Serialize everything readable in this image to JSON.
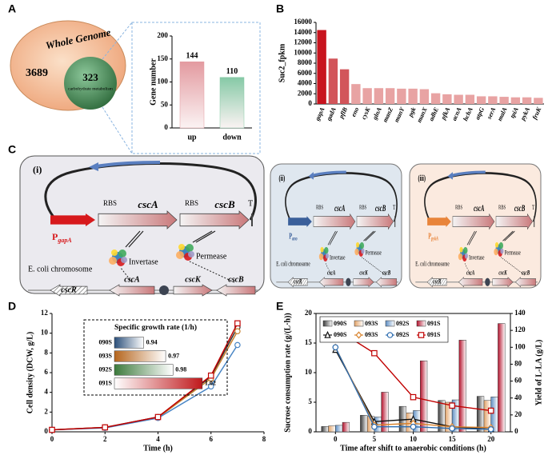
{
  "panel_labels": [
    "A",
    "B",
    "C",
    "D",
    "E"
  ],
  "venn": {
    "outer_label": "Whole Genome",
    "outer_value": 3689,
    "inner_value": 323,
    "inner_label": "carbohydrate metabolism"
  },
  "constructs": [
    {
      "id": "(i)",
      "rbs1": "RBS",
      "gene1": "cscA",
      "rbs2": "RBS",
      "gene2": "cscB",
      "terminator": "T",
      "promoter": "P",
      "promoter_sub": "gapA",
      "promoter_color": "#d7191c",
      "protein1": "Invertase",
      "protein2": "Permease",
      "chromosome": "E. coli chromosome",
      "chrom_genes": [
        "cscR",
        "cscA",
        "cscK",
        "cscB"
      ]
    },
    {
      "id": "(ii)",
      "rbs1": "RBS",
      "gene1": "cscA",
      "rbs2": "RBS",
      "gene2": "cscB",
      "terminator": "T",
      "promoter": "P",
      "promoter_sub": "ano",
      "promoter_color": "#3a5f9a",
      "protein1": "Invertase",
      "protein2": "Permease",
      "chromosome": "E. coli chromosome",
      "chrom_genes": [
        "cscR",
        "cscA",
        "cscK",
        "cscB"
      ]
    },
    {
      "id": "(iii)",
      "rbs1": "RBS",
      "gene1": "cscA",
      "rbs2": "RBS",
      "gene2": "cscB",
      "terminator": "T",
      "promoter": "P",
      "promoter_sub": "pykA",
      "promoter_color": "#e8843a",
      "protein1": "Invertase",
      "protein2": "Permease",
      "chromosome": "E. coli chromosome",
      "chrom_genes": [
        "cscR",
        "cscA",
        "cscK",
        "cscB"
      ]
    }
  ],
  "chart_data": [
    {
      "type": "bar",
      "categories": [
        "up",
        "down"
      ],
      "values": [
        144,
        110
      ],
      "colors": [
        "#e39aa0",
        "#86c9a6"
      ],
      "ylabel": "Gene number",
      "ylim": [
        0,
        200
      ],
      "yticks": [
        0,
        50,
        100,
        150,
        200
      ]
    },
    {
      "type": "bar",
      "ylabel": "Suc2_fpkm",
      "categories": [
        "gapA",
        "gadA",
        "pflB",
        "eno",
        "cysK",
        "glnA",
        "manZ",
        "manY",
        "pgk",
        "manX",
        "adhE",
        "pfkA",
        "acnA",
        "hchA",
        "atpG",
        "serA",
        "malA",
        "tpiA",
        "pykA",
        "fruK"
      ],
      "values": [
        14500,
        8900,
        6800,
        3900,
        3100,
        3100,
        3100,
        3000,
        3000,
        2900,
        2100,
        1900,
        1800,
        1800,
        1500,
        1500,
        1400,
        1300,
        1300,
        1200
      ],
      "colors": [
        "#c8141e",
        "#d2555a",
        "#d2555a",
        "#e8a3a3",
        "#e8a3a3",
        "#e8a3a3",
        "#e8a3a3",
        "#e8a3a3",
        "#e8a3a3",
        "#e8a3a3",
        "#e8a3a3",
        "#e8a3a3",
        "#e8a3a3",
        "#e8a3a3",
        "#e8a3a3",
        "#e8a3a3",
        "#e8a3a3",
        "#e8a3a3",
        "#e8a3a3",
        "#e8a3a3"
      ],
      "ylim": [
        0,
        16000
      ],
      "yticks": [
        0,
        2000,
        4000,
        6000,
        8000,
        10000,
        12000,
        14000,
        16000
      ]
    },
    {
      "type": "line",
      "xlabel": "Time (h)",
      "ylabel": "Cell density (DCW, g/L)",
      "x": [
        0,
        2,
        4,
        6,
        7
      ],
      "xlim": [
        0,
        8
      ],
      "xticks": [
        0,
        2,
        4,
        6,
        8
      ],
      "ylim": [
        0,
        12
      ],
      "yticks": [
        0,
        2,
        4,
        6,
        8,
        10,
        12
      ],
      "series": [
        {
          "name": "090S",
          "color": "#333333",
          "marker": "circle",
          "values": [
            0.2,
            0.45,
            1.5,
            5.6,
            10.6
          ]
        },
        {
          "name": "093S",
          "color": "#c8812f",
          "marker": "circle",
          "values": [
            0.2,
            0.45,
            1.45,
            5.4,
            10.2
          ]
        },
        {
          "name": "092S",
          "color": "#4a86c5",
          "marker": "circle",
          "values": [
            0.2,
            0.4,
            1.4,
            4.6,
            8.8
          ]
        },
        {
          "name": "091S",
          "color": "#c00000",
          "marker": "square",
          "values": [
            0.2,
            0.45,
            1.5,
            5.7,
            11.0
          ]
        }
      ]
    },
    {
      "type": "hbar",
      "title": "Specific growth rate (1/h)",
      "categories": [
        "090S",
        "093S",
        "092S",
        "091S"
      ],
      "values": [
        0.94,
        0.97,
        0.98,
        1.02
      ],
      "colors": [
        "#2b4f7a",
        "#b5651d",
        "#3c7a3c",
        "#c0191c"
      ],
      "xlim": [
        0.9,
        1.03
      ]
    },
    {
      "type": "combo",
      "xlabel": "Time after shift to anaerobic conditions (h)",
      "ylabel": "Sucrose consumption rate (g/(L·h))",
      "y2label": "Yield of L-LA (g/L)",
      "x": [
        0,
        5,
        10,
        15,
        20
      ],
      "xlim": [
        -2.5,
        22.5
      ],
      "xticks": [
        0,
        5,
        10,
        15,
        20
      ],
      "ylim": [
        0,
        20
      ],
      "yticks": [
        0,
        5,
        10,
        15,
        20
      ],
      "y2lim": [
        0,
        140
      ],
      "y2ticks": [
        0,
        20,
        40,
        60,
        80,
        100,
        120,
        140
      ],
      "series": [
        {
          "name": "090S",
          "type": "bar",
          "color": "#3a3a3a",
          "values": [
            0.9,
            2.8,
            4.3,
            5.3,
            6.0
          ]
        },
        {
          "name": "093S",
          "type": "bar",
          "color": "#e3a46a",
          "values": [
            1.0,
            2.6,
            3.2,
            5.0,
            5.3
          ]
        },
        {
          "name": "092S",
          "type": "bar",
          "color": "#5f8fc4",
          "values": [
            1.1,
            2.5,
            3.6,
            5.4,
            5.9
          ]
        },
        {
          "name": "091S",
          "type": "bar",
          "color": "#b3122c",
          "values": [
            1.6,
            6.7,
            12.0,
            15.5,
            18.3
          ]
        },
        {
          "name": "090S",
          "type": "line",
          "axis": "y2",
          "color": "#111111",
          "marker": "triangle",
          "values": [
            97,
            12,
            15,
            6,
            3
          ]
        },
        {
          "name": "093S",
          "type": "line",
          "axis": "y2",
          "color": "#d9822b",
          "marker": "diamond",
          "values": [
            100,
            8,
            10,
            6,
            5
          ]
        },
        {
          "name": "092S",
          "type": "line",
          "axis": "y2",
          "color": "#2e6db0",
          "marker": "circle",
          "values": [
            100,
            6,
            6,
            4,
            3
          ]
        },
        {
          "name": "091S",
          "type": "line",
          "axis": "y2",
          "color": "#c00000",
          "marker": "square",
          "values": [
            122,
            93,
            41,
            31,
            25
          ]
        }
      ]
    }
  ]
}
